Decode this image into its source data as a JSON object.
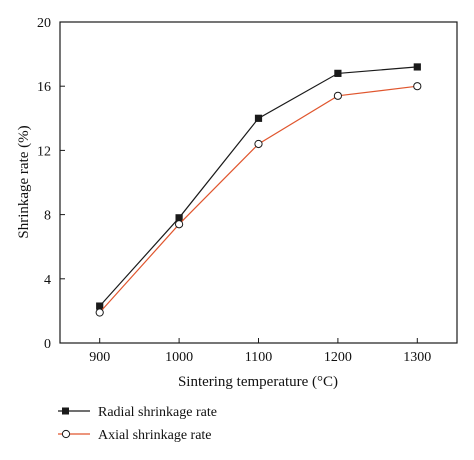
{
  "chart_data": {
    "type": "line",
    "title": "",
    "xlabel": "Sintering temperature (°C)",
    "ylabel": "Shrinkage rate (%)",
    "x": [
      900,
      1000,
      1100,
      1200,
      1300
    ],
    "xlim": [
      850,
      1350
    ],
    "ylim": [
      0,
      20
    ],
    "x_ticks": [
      "900",
      "1000",
      "1100",
      "1200",
      "1300"
    ],
    "y_ticks": [
      "0",
      "4",
      "8",
      "12",
      "16",
      "20"
    ],
    "grid": false,
    "legend_position": "bottom-left, below plot",
    "series": [
      {
        "name": "Radial shrinkage rate",
        "values": [
          2.3,
          7.8,
          14.0,
          16.8,
          17.2
        ],
        "marker": "filled-square",
        "color": "#1a1a1a"
      },
      {
        "name": "Axial shrinkage rate",
        "values": [
          1.9,
          7.4,
          12.4,
          15.4,
          16.0
        ],
        "marker": "open-circle",
        "color": "#e0562e"
      }
    ]
  }
}
